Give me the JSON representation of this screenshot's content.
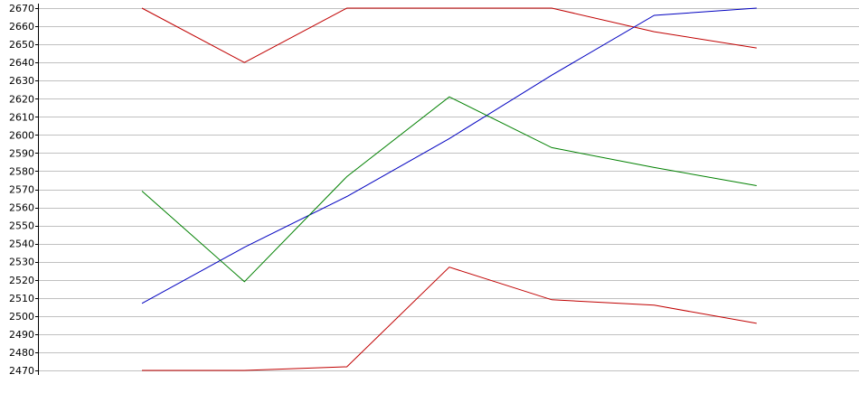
{
  "chart_data": {
    "type": "line",
    "x": [
      1,
      2,
      3,
      4,
      5,
      6,
      7
    ],
    "ylim": [
      2470,
      2670
    ],
    "ytick_step": 10,
    "grid": true,
    "grid_color": "#c0c0c0",
    "axis_color": "#000000",
    "y_tick_labels": [
      "2470",
      "2480",
      "2490",
      "2500",
      "2510",
      "2520",
      "2530",
      "2540",
      "2550",
      "2560",
      "2570",
      "2580",
      "2590",
      "2600",
      "2610",
      "2620",
      "2630",
      "2640",
      "2650",
      "2660",
      "2670"
    ],
    "series": [
      {
        "color": "#c00000",
        "values": [
          2670,
          2640,
          2670,
          2670,
          2670,
          2657,
          2648
        ]
      },
      {
        "color": "#0000c0",
        "values": [
          2507,
          2538,
          2566,
          2598,
          2633,
          2666,
          2670
        ]
      },
      {
        "color": "#008000",
        "values": [
          2569,
          2519,
          2577,
          2621,
          2593,
          2582,
          2572
        ]
      },
      {
        "color": "#c00000",
        "values": [
          2470,
          2470,
          2472,
          2527,
          2509,
          2506,
          2496
        ]
      }
    ]
  }
}
